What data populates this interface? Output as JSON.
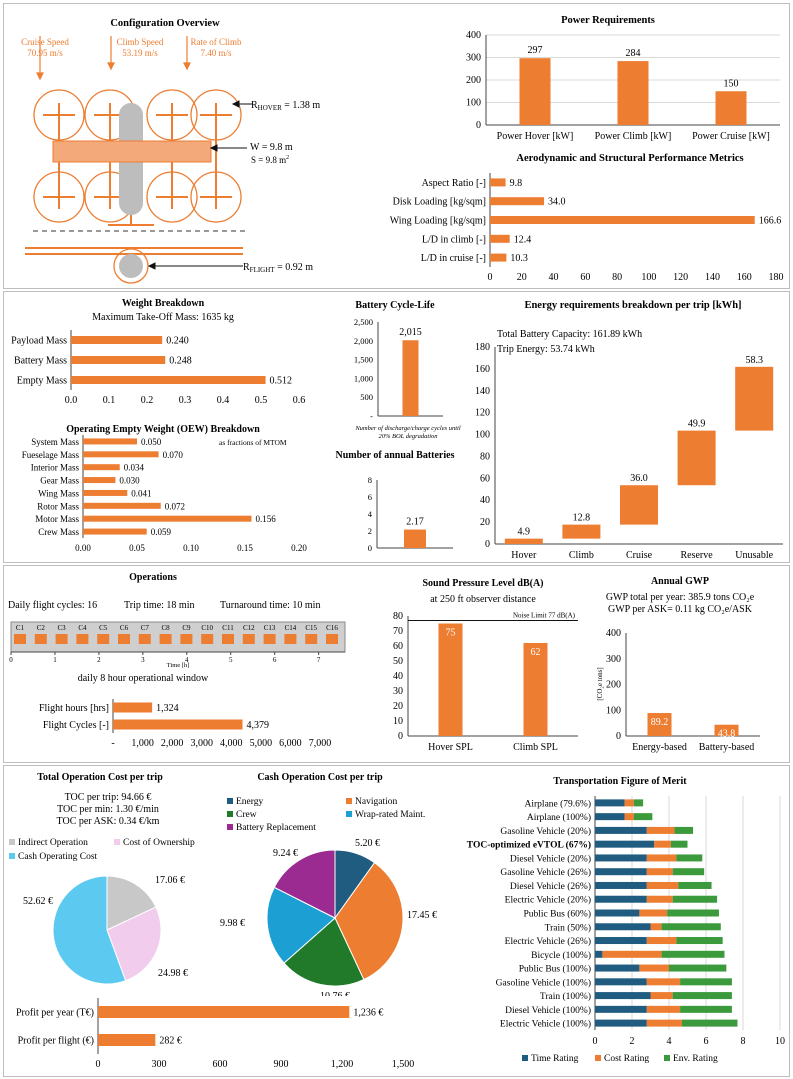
{
  "colors": {
    "orange": "#ED7D31",
    "blue": "#1F5C80",
    "green": "#3B9A3B",
    "gray": "#c8c8c8",
    "lightblue": "#5BC9F0",
    "pink": "#F2CCEC",
    "purple": "#9B2A91",
    "darkgreen": "#217A2A",
    "cyan": "#1CA0D4"
  },
  "config": {
    "title": "Configuration Overview",
    "cruise_label": "Cruise Speed",
    "cruise_val": "70.95 m/s",
    "climb_label": "Climb Speed",
    "climb_val": "53.19 m/s",
    "roc_label": "Rate of Climb",
    "roc_val": "7.40 m/s",
    "r_hover_pre": "R",
    "r_hover_sub": "HOVER",
    "r_hover_val": " = 1.38 m",
    "w_label": "W = 9.8 m",
    "s_label": "S = 9.8 m",
    "s_sup": "2",
    "r_flight_pre": "R",
    "r_flight_sub": "FLIGHT",
    "r_flight_val": " = 0.92 m"
  },
  "chart_data": [
    {
      "id": "power",
      "type": "bar",
      "title": "Power Requirements",
      "categories": [
        "Power Hover [kW]",
        "Power Climb [kW]",
        "Power Cruise [kW]"
      ],
      "values": [
        297,
        284,
        150
      ],
      "ylim": [
        0,
        400
      ],
      "yticks": [
        "0",
        "100",
        "200",
        "300",
        "400"
      ],
      "grid": true
    },
    {
      "id": "aero",
      "type": "bar",
      "orientation": "horizontal",
      "title": "Aerodynamic and Structural Performance Metrics",
      "categories": [
        "Aspect Ratio [-]",
        "Disk Loading [kg/sqm]",
        "Wing Loading [kg/sqm]",
        "L/D in climb [-]",
        "L/D in cruise [-]"
      ],
      "values": [
        9.8,
        34.0,
        166.6,
        12.4,
        10.3
      ],
      "labels": [
        "9.8",
        "34.0",
        "166.6",
        "12.4",
        "10.3"
      ],
      "xlim": [
        0,
        180
      ],
      "xticks": [
        "0",
        "20",
        "40",
        "60",
        "80",
        "100",
        "120",
        "140",
        "160",
        "180"
      ]
    },
    {
      "id": "weight",
      "type": "bar",
      "orientation": "horizontal",
      "title": "Weight Breakdown",
      "subtitle": "Maximum Take-Off Mass: 1635 kg",
      "categories": [
        "Payload Mass",
        "Battery Mass",
        "Empty Mass"
      ],
      "values": [
        0.24,
        0.248,
        0.512
      ],
      "labels": [
        "0.240",
        "0.248",
        "0.512"
      ],
      "xlim": [
        0,
        0.6
      ],
      "xticks": [
        "0.0",
        "0.1",
        "0.2",
        "0.3",
        "0.4",
        "0.5",
        "0.6"
      ]
    },
    {
      "id": "oew",
      "type": "bar",
      "orientation": "horizontal",
      "title": "Operating Empty Weight (OEW) Breakdown",
      "note": "as fractions of MTOM",
      "categories": [
        "System Mass",
        "Fueselage Mass",
        "Interior Mass",
        "Gear Mass",
        "Wing Mass",
        "Rotor Mass",
        "Motor Mass",
        "Crew Mass"
      ],
      "values": [
        0.05,
        0.07,
        0.034,
        0.03,
        0.041,
        0.072,
        0.156,
        0.059
      ],
      "labels": [
        "0.050",
        "0.070",
        "0.034",
        "0.030",
        "0.041",
        "0.072",
        "0.156",
        "0.059"
      ],
      "xlim": [
        0,
        0.2
      ],
      "xticks": [
        "0.00",
        "0.05",
        "0.10",
        "0.15",
        "0.20"
      ]
    },
    {
      "id": "cycle",
      "type": "bar",
      "title": "Battery Cycle-Life",
      "values": [
        2015
      ],
      "labels": [
        "2,015"
      ],
      "ylim": [
        0,
        2500
      ],
      "yticks": [
        "-",
        "500",
        "1,000",
        "1,500",
        "2,000",
        "2,500"
      ],
      "note": "Number of discharge/charge cycles until 20% BOL degradation"
    },
    {
      "id": "annual_batt",
      "type": "bar",
      "title": "Number of annual Batteries",
      "values": [
        2.17
      ],
      "labels": [
        "2.17"
      ],
      "ylim": [
        0,
        8
      ],
      "yticks": [
        "0",
        "2",
        "4",
        "6",
        "8"
      ]
    },
    {
      "id": "energy",
      "type": "bar",
      "subtype": "waterfall",
      "title": "Energy requirements breakdown per trip [kWh]",
      "categories": [
        "Hover",
        "Climb",
        "Cruise",
        "Reserve",
        "Unusable"
      ],
      "values": [
        4.9,
        12.8,
        36.0,
        49.9,
        58.3
      ],
      "labels": [
        "4.9",
        "12.8",
        "36.0",
        "49.9",
        "58.3"
      ],
      "bases": [
        0,
        4.9,
        17.7,
        53.7,
        103.6
      ],
      "ylim": [
        0,
        180
      ],
      "yticks": [
        "0",
        "20",
        "40",
        "60",
        "80",
        "100",
        "120",
        "140",
        "160",
        "180"
      ],
      "annotations": [
        "Total Battery Capacity: 161.89 kWh",
        "Trip Energy: 53.74 kWh"
      ]
    },
    {
      "id": "ops",
      "type": "bar",
      "orientation": "horizontal",
      "title": "Operations",
      "categories": [
        "Flight hours [hrs]",
        "Flight Cycles [-]"
      ],
      "values": [
        1324,
        4379
      ],
      "labels": [
        "1,324",
        "4,379"
      ],
      "xlim": [
        0,
        7000
      ],
      "xticks": [
        "-",
        "1,000",
        "2,000",
        "3,000",
        "4,000",
        "5,000",
        "6,000",
        "7,000"
      ]
    },
    {
      "id": "spl",
      "type": "bar",
      "title": "Sound Pressure Level dB(A)",
      "subtitle": "at 250 ft observer distance",
      "categories": [
        "Hover SPL",
        "Climb SPL"
      ],
      "values": [
        75,
        62
      ],
      "labels": [
        "75",
        "62"
      ],
      "ylim": [
        0,
        80
      ],
      "yticks": [
        "0",
        "10",
        "20",
        "30",
        "40",
        "50",
        "60",
        "70",
        "80"
      ],
      "limit": 77,
      "limit_label": "Noise Limit 77 dB(A)"
    },
    {
      "id": "gwp",
      "type": "bar",
      "title": "Annual GWP",
      "categories": [
        "Energy-based",
        "Battery-based"
      ],
      "values": [
        89.2,
        43.8
      ],
      "labels": [
        "89.2",
        "43.8"
      ],
      "ylim": [
        0,
        400
      ],
      "yticks": [
        "0",
        "100",
        "200",
        "300",
        "400"
      ],
      "ylabel": "[CO₂e tons]",
      "annotations": [
        "GWP total per year: 385.9 tons CO₂e",
        "GWP per ASK= 0.11 kg CO₂e/ASK"
      ]
    },
    {
      "id": "toc",
      "type": "pie",
      "title": "Total Operation Cost per trip",
      "annotations": [
        "TOC per trip: 94.66 €",
        "TOC per min: 1.30 €/min",
        "TOC per ASK:  0.34 €/km"
      ],
      "categories": [
        "Indirect Operation",
        "Cost of Ownership",
        "Cash Operating Cost"
      ],
      "values": [
        17.06,
        24.98,
        52.62
      ],
      "labels": [
        "17.06 €",
        "24.98 €",
        "52.62 €"
      ]
    },
    {
      "id": "coc",
      "type": "pie",
      "title": "Cash Operation Cost per trip",
      "categories": [
        "Energy",
        "Navigation",
        "Crew",
        "Wrap-rated Maint.",
        "Battery Replacement"
      ],
      "values": [
        5.2,
        17.45,
        10.76,
        9.98,
        9.24
      ],
      "labels": [
        "5.20 €",
        "17.45 €",
        "10.76 €",
        "9.98 €",
        "9.24 €"
      ]
    },
    {
      "id": "profit",
      "type": "bar",
      "orientation": "horizontal",
      "categories": [
        "Profit per year (T€)",
        "Profit per flight (€)"
      ],
      "values": [
        1236,
        282
      ],
      "labels": [
        "1,236 €",
        "282 €"
      ],
      "xlim": [
        0,
        1500
      ],
      "xticks": [
        "0",
        "300",
        "600",
        "900",
        "1,200",
        "1,500"
      ]
    },
    {
      "id": "tfom",
      "type": "bar",
      "orientation": "horizontal",
      "stacked": true,
      "title": "Transportation Figure of Merit",
      "categories": [
        "Airplane (79.6%)",
        "Airplane (100%)",
        "Gasoline Vehicle (20%)",
        "TOC-optimized eVTOL (67%)",
        "Diesel Vehicle (20%)",
        "Gasoline Vehicle (26%)",
        "Diesel Vehicle (26%)",
        "Electric Vehicle (20%)",
        "Public Bus (60%)",
        "Train (50%)",
        "Electric Vehicle (26%)",
        "Bicycle (100%)",
        "Public Bus (100%)",
        "Gasoline Vehicle (100%)",
        "Train (100%)",
        "Diesel Vehicle (100%)",
        "Electric Vehicle (100%)"
      ],
      "bold_index": 3,
      "series": [
        {
          "name": "Time Rating",
          "values": [
            1.6,
            1.6,
            2.8,
            3.2,
            2.8,
            2.8,
            2.8,
            2.8,
            2.4,
            3.0,
            2.8,
            0.4,
            2.4,
            2.8,
            3.0,
            2.8,
            2.8
          ]
        },
        {
          "name": "Cost Rating",
          "values": [
            0.5,
            0.5,
            1.5,
            0.9,
            1.6,
            1.4,
            1.7,
            1.4,
            1.5,
            0.6,
            1.6,
            3.2,
            1.6,
            1.8,
            1.2,
            1.8,
            1.9
          ]
        },
        {
          "name": "Env. Rating",
          "values": [
            0.5,
            1.0,
            1.0,
            0.9,
            1.4,
            1.7,
            1.8,
            2.4,
            2.8,
            3.2,
            2.5,
            3.4,
            3.1,
            2.8,
            3.2,
            2.8,
            3.0
          ]
        }
      ],
      "xlim": [
        0,
        10
      ],
      "xticks": [
        "0",
        "2",
        "4",
        "6",
        "8",
        "10"
      ]
    }
  ],
  "timeline": {
    "stats": [
      "Daily flight cycles: 16",
      "Trip time: 18 min",
      "Turnaround time: 10 min"
    ],
    "cycles": [
      "C1",
      "C2",
      "C3",
      "C4",
      "C5",
      "C6",
      "C7",
      "C8",
      "C9",
      "C10",
      "C11",
      "C12",
      "C13",
      "C14",
      "C15",
      "C16"
    ],
    "hours": [
      "0",
      "1",
      "2",
      "3",
      "4",
      "5",
      "6",
      "7"
    ],
    "xlabel": "Time [h]",
    "caption": "daily 8 hour operational window"
  }
}
